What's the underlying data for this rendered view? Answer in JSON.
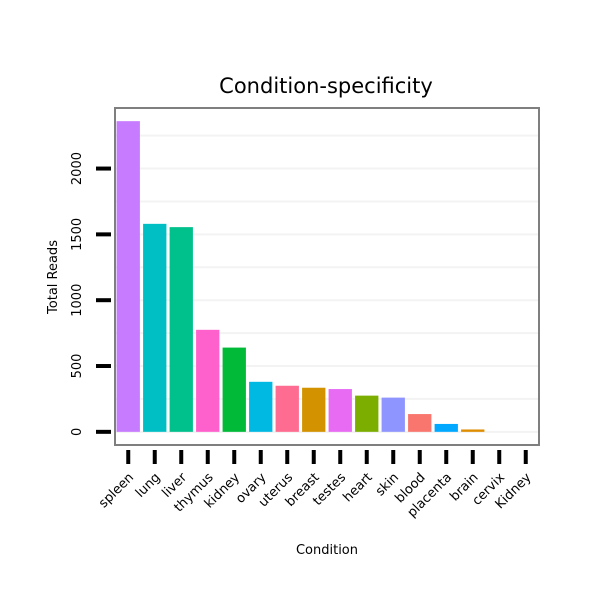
{
  "chart_data": {
    "type": "bar",
    "title": "Condition-specificity",
    "xlabel": "Condition",
    "ylabel": "Total Reads",
    "categories": [
      "spleen",
      "lung",
      "liver",
      "thymus",
      "kidney",
      "ovary",
      "uterus",
      "breast",
      "testes",
      "heart",
      "skin",
      "blood",
      "placenta",
      "brain",
      "cervix",
      "Kidney"
    ],
    "values": [
      2360,
      1580,
      1555,
      775,
      640,
      380,
      350,
      335,
      325,
      275,
      260,
      135,
      60,
      18,
      0,
      0
    ],
    "colors": [
      "#C77CFF",
      "#00BFC4",
      "#00C08B",
      "#FF61CC",
      "#00BA38",
      "#00B9E3",
      "#FF6C91",
      "#D39200",
      "#E76BF3",
      "#7CAE00",
      "#8F95FF",
      "#F8766D",
      "#00A9FF",
      "#DE8C00",
      "#00C0B8",
      "#FC717F"
    ],
    "y_ticks": [
      0,
      500,
      1000,
      1500,
      2000
    ],
    "ylim": [
      -100,
      2460
    ],
    "grid": true
  }
}
